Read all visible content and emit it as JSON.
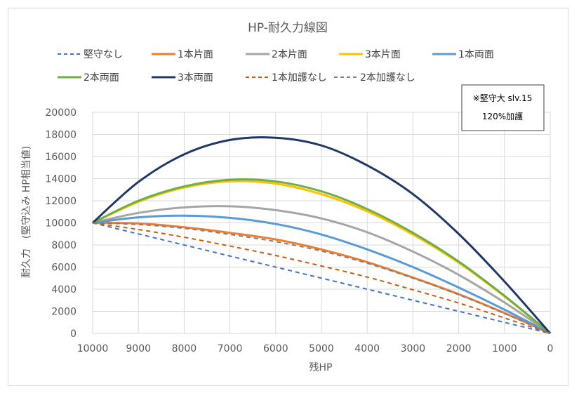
{
  "chart_data": {
    "type": "line",
    "title": "HP-耐久力線図",
    "xlabel": "残HP",
    "ylabel": "耐久力　(堅守込み HP相当値)",
    "xlim": [
      10000,
      0
    ],
    "ylim": [
      0,
      20000
    ],
    "x_ticks": [
      "10000",
      "9000",
      "8000",
      "7000",
      "6000",
      "5000",
      "4000",
      "3000",
      "2000",
      "1000",
      "0"
    ],
    "y_ticks": [
      "0",
      "2000",
      "4000",
      "6000",
      "8000",
      "10000",
      "12000",
      "14000",
      "16000",
      "18000",
      "20000"
    ],
    "grid": true,
    "legend_position": "top",
    "annotation": [
      "※堅守大 slv.15",
      "120%加護"
    ],
    "x": [
      10000,
      9000,
      8000,
      7000,
      6000,
      5000,
      4000,
      3000,
      2000,
      1000,
      0
    ],
    "series": [
      {
        "name": "堅守なし",
        "color": "#4472c4",
        "dashed": true,
        "values": [
          10000,
          9000,
          8000,
          7000,
          6000,
          5000,
          4000,
          3000,
          2000,
          1000,
          0
        ]
      },
      {
        "name": "1本片面",
        "color": "#ed7d31",
        "dashed": false,
        "values": [
          10000,
          9950,
          9600,
          9100,
          8500,
          7600,
          6450,
          5050,
          3550,
          1850,
          0
        ]
      },
      {
        "name": "2本片面",
        "color": "#a5a5a5",
        "dashed": false,
        "values": [
          10000,
          10900,
          11400,
          11500,
          11150,
          10400,
          9150,
          7400,
          5300,
          2800,
          0
        ]
      },
      {
        "name": "3本片面",
        "color": "#ffc000",
        "dashed": false,
        "values": [
          10000,
          11900,
          13200,
          13750,
          13550,
          12600,
          11050,
          8950,
          6400,
          3350,
          0
        ]
      },
      {
        "name": "1本両面",
        "color": "#5b9bd5",
        "dashed": false,
        "values": [
          10000,
          10500,
          10650,
          10450,
          9900,
          8950,
          7600,
          6000,
          4150,
          2150,
          0
        ]
      },
      {
        "name": "2本両面",
        "color": "#70ad47",
        "dashed": false,
        "values": [
          10000,
          12000,
          13300,
          13900,
          13750,
          12850,
          11250,
          9100,
          6500,
          3400,
          0
        ]
      },
      {
        "name": "3本両面",
        "color": "#203864",
        "dashed": false,
        "values": [
          10000,
          13700,
          16200,
          17500,
          17700,
          17000,
          15200,
          12600,
          9000,
          4700,
          0
        ]
      },
      {
        "name": "1本加護なし",
        "color": "#c55a11",
        "dashed": true,
        "values": [
          10000,
          9400,
          8700,
          7900,
          7050,
          6100,
          5100,
          3950,
          2750,
          1400,
          0
        ]
      },
      {
        "name": "2本加護なし",
        "color": "#7f7f7f",
        "dashed": true,
        "values": [
          10000,
          9850,
          9500,
          8950,
          8300,
          7450,
          6350,
          5000,
          3500,
          1800,
          0
        ]
      }
    ]
  }
}
